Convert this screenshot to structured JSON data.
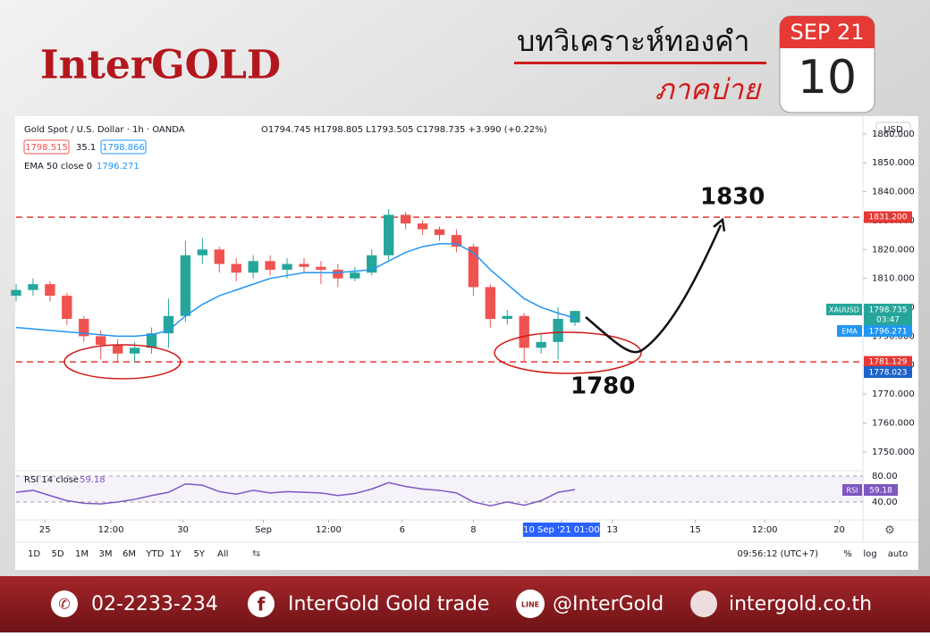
{
  "header": {
    "logo": "InterGOLD",
    "title": "บทวิเคราะห์ทองคำ",
    "subtitle": "ภาคบ่าย",
    "calendar_month": "SEP 21",
    "calendar_day": "10"
  },
  "toolbar": {
    "symbol": "Gold Spot / U.S. Dollar · 1h · OANDA",
    "ohlc": "O1794.745 H1798.805 L1793.505 C1798.735 +3.990 (+0.22%)",
    "bid": "1798.515",
    "spread": "35.1",
    "ask": "1798.866",
    "ema_label": "EMA 50 close 0",
    "ema_value": "1796.271",
    "currency": "USD"
  },
  "chart_data": {
    "type": "candlestick",
    "x": [
      0,
      2,
      4,
      6,
      8,
      10,
      12,
      14,
      16,
      18,
      20,
      22,
      24,
      26,
      28,
      30,
      32,
      34,
      36,
      38,
      40,
      42,
      44,
      46,
      48,
      50,
      52,
      54,
      56,
      58,
      60,
      62,
      64,
      66
    ],
    "xlim": [
      0,
      100
    ],
    "xticks": [
      {
        "value": 3.4,
        "label": "25"
      },
      {
        "value": 11.2,
        "label": "12:00"
      },
      {
        "value": 19.7,
        "label": "30"
      },
      {
        "value": 29.2,
        "label": "Sep"
      },
      {
        "value": 36.9,
        "label": "12:00"
      },
      {
        "value": 45.6,
        "label": "6"
      },
      {
        "value": 54,
        "label": "8"
      },
      {
        "value": 64.4,
        "label": "10 Sep '21  01:00"
      },
      {
        "value": 70.4,
        "label": "13"
      },
      {
        "value": 80.2,
        "label": "15"
      },
      {
        "value": 88.4,
        "label": "12:00"
      },
      {
        "value": 97.2,
        "label": "20"
      }
    ],
    "ylim": [
      1745,
      1864.6
    ],
    "yticks": [
      {
        "value": 1860,
        "label": "1860.000"
      },
      {
        "value": 1850,
        "label": "1850.000"
      },
      {
        "value": 1840,
        "label": "1840.000"
      },
      {
        "value": 1830,
        "label": "1830.000"
      },
      {
        "value": 1820,
        "label": "1820.000"
      },
      {
        "value": 1810,
        "label": "1810.000"
      },
      {
        "value": 1800,
        "label": "1800.000"
      },
      {
        "value": 1790,
        "label": "1790.000"
      },
      {
        "value": 1780,
        "label": "1780.000"
      },
      {
        "value": 1770,
        "label": "1770.000"
      },
      {
        "value": 1760,
        "label": "1760.000"
      },
      {
        "value": 1750,
        "label": "1750.000"
      }
    ],
    "series": [
      {
        "name": "XAUUSD",
        "up_color": "#26a69a",
        "down_color": "#ef5350",
        "open": [
          1804,
          1806,
          1808,
          1804,
          1796,
          1790,
          1787,
          1784,
          1786,
          1791,
          1797,
          1818,
          1820,
          1815,
          1812,
          1816,
          1813,
          1815,
          1814,
          1813,
          1810,
          1812,
          1818,
          1832,
          1829,
          1827,
          1825,
          1821,
          1807,
          1796,
          1797,
          1786,
          1788,
          1794.745
        ],
        "high": [
          1808,
          1810,
          1809,
          1805,
          1797,
          1792,
          1789,
          1788,
          1793,
          1803,
          1823,
          1824,
          1821,
          1817,
          1818,
          1818,
          1817,
          1817,
          1816,
          1815,
          1814,
          1820,
          1834,
          1833,
          1830,
          1828,
          1827,
          1822,
          1808,
          1799,
          1798,
          1791,
          1800,
          1798.805
        ],
        "low": [
          1802,
          1804,
          1802,
          1794,
          1788,
          1782,
          1781,
          1781,
          1784,
          1786,
          1795,
          1815,
          1812,
          1809,
          1810,
          1811,
          1810,
          1812,
          1808,
          1807,
          1809,
          1811,
          1816,
          1827,
          1825,
          1823,
          1819,
          1804,
          1793,
          1794,
          1781,
          1784,
          1782,
          1793.505
        ],
        "close": [
          1806,
          1808,
          1804,
          1796,
          1790,
          1787,
          1784,
          1786,
          1791,
          1797,
          1818,
          1820,
          1815,
          1812,
          1816,
          1813,
          1815,
          1814,
          1813,
          1810,
          1812,
          1818,
          1832,
          1829,
          1827,
          1825,
          1821,
          1807,
          1796,
          1797,
          1786,
          1788,
          1796,
          1798.735
        ]
      }
    ],
    "ema": {
      "name": "EMA",
      "color": "#2196f3",
      "values": [
        1793,
        1792.5,
        1792,
        1791.5,
        1791,
        1790.5,
        1790,
        1790,
        1790.5,
        1792,
        1797,
        1801,
        1804,
        1806,
        1808,
        1810,
        1811,
        1812,
        1812,
        1812,
        1812.5,
        1813,
        1816,
        1819,
        1821,
        1822,
        1822,
        1819,
        1813,
        1808,
        1803,
        1800,
        1798,
        1796.271
      ]
    },
    "hlines": [
      {
        "value": 1831.2,
        "label": "1831.200",
        "color": "#e53935"
      },
      {
        "value": 1781.129,
        "label": "1781.129",
        "color": "#e53935"
      }
    ],
    "price_tags": {
      "symbol": "XAUUSD",
      "last": "1798.735",
      "countdown": "03:47",
      "ema_name": "EMA",
      "ema": "1796.271",
      "low": "1778.023"
    },
    "annotations": [
      "1830",
      "1780"
    ],
    "rsi": {
      "title": "RSI 14 close",
      "name": "RSI",
      "value_label": "59.18",
      "color": "#7e57c2",
      "ylim": [
        15,
        87
      ],
      "yticks": [
        {
          "value": 80,
          "label": "80.00"
        },
        {
          "value": 40,
          "label": "40.00"
        }
      ],
      "values": [
        55,
        58,
        50,
        42,
        38,
        37,
        40,
        44,
        50,
        55,
        68,
        66,
        56,
        52,
        58,
        54,
        56,
        55,
        54,
        50,
        53,
        60,
        70,
        64,
        60,
        58,
        54,
        40,
        34,
        40,
        35,
        42,
        55,
        59.18
      ]
    }
  },
  "bottom_bar": {
    "ranges": [
      "1D",
      "5D",
      "1M",
      "3M",
      "6M",
      "YTD",
      "1Y",
      "5Y",
      "All"
    ],
    "time": "09:56:12 (UTC+7)",
    "options": [
      "%",
      "log",
      "auto"
    ]
  },
  "footer": {
    "phone": "02-2233-234",
    "facebook": "InterGold Gold trade",
    "line": "@InterGold",
    "website": "intergold.co.th"
  }
}
